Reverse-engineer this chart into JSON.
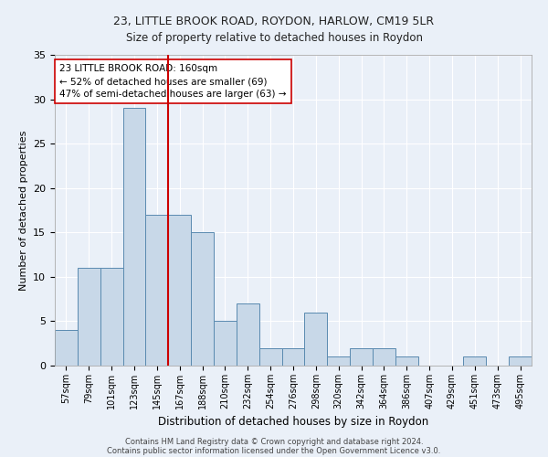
{
  "title1": "23, LITTLE BROOK ROAD, ROYDON, HARLOW, CM19 5LR",
  "title2": "Size of property relative to detached houses in Roydon",
  "xlabel": "Distribution of detached houses by size in Roydon",
  "ylabel": "Number of detached properties",
  "categories": [
    "57sqm",
    "79sqm",
    "101sqm",
    "123sqm",
    "145sqm",
    "167sqm",
    "188sqm",
    "210sqm",
    "232sqm",
    "254sqm",
    "276sqm",
    "298sqm",
    "320sqm",
    "342sqm",
    "364sqm",
    "386sqm",
    "407sqm",
    "429sqm",
    "451sqm",
    "473sqm",
    "495sqm"
  ],
  "values": [
    4,
    11,
    11,
    29,
    17,
    17,
    15,
    5,
    7,
    2,
    2,
    6,
    1,
    2,
    2,
    1,
    0,
    0,
    1,
    0,
    1
  ],
  "bar_color": "#c8d8e8",
  "bar_edge_color": "#5a8ab0",
  "vline_x": 4.5,
  "vline_color": "#cc0000",
  "annotation_line1": "23 LITTLE BROOK ROAD: 160sqm",
  "annotation_line2": "← 52% of detached houses are smaller (69)",
  "annotation_line3": "47% of semi-detached houses are larger (63) →",
  "annotation_box_color": "#ffffff",
  "annotation_box_edge": "#cc0000",
  "ylim": [
    0,
    35
  ],
  "yticks": [
    0,
    5,
    10,
    15,
    20,
    25,
    30,
    35
  ],
  "background_color": "#eaf0f8",
  "grid_color": "#ffffff",
  "footnote1": "Contains HM Land Registry data © Crown copyright and database right 2024.",
  "footnote2": "Contains public sector information licensed under the Open Government Licence v3.0."
}
